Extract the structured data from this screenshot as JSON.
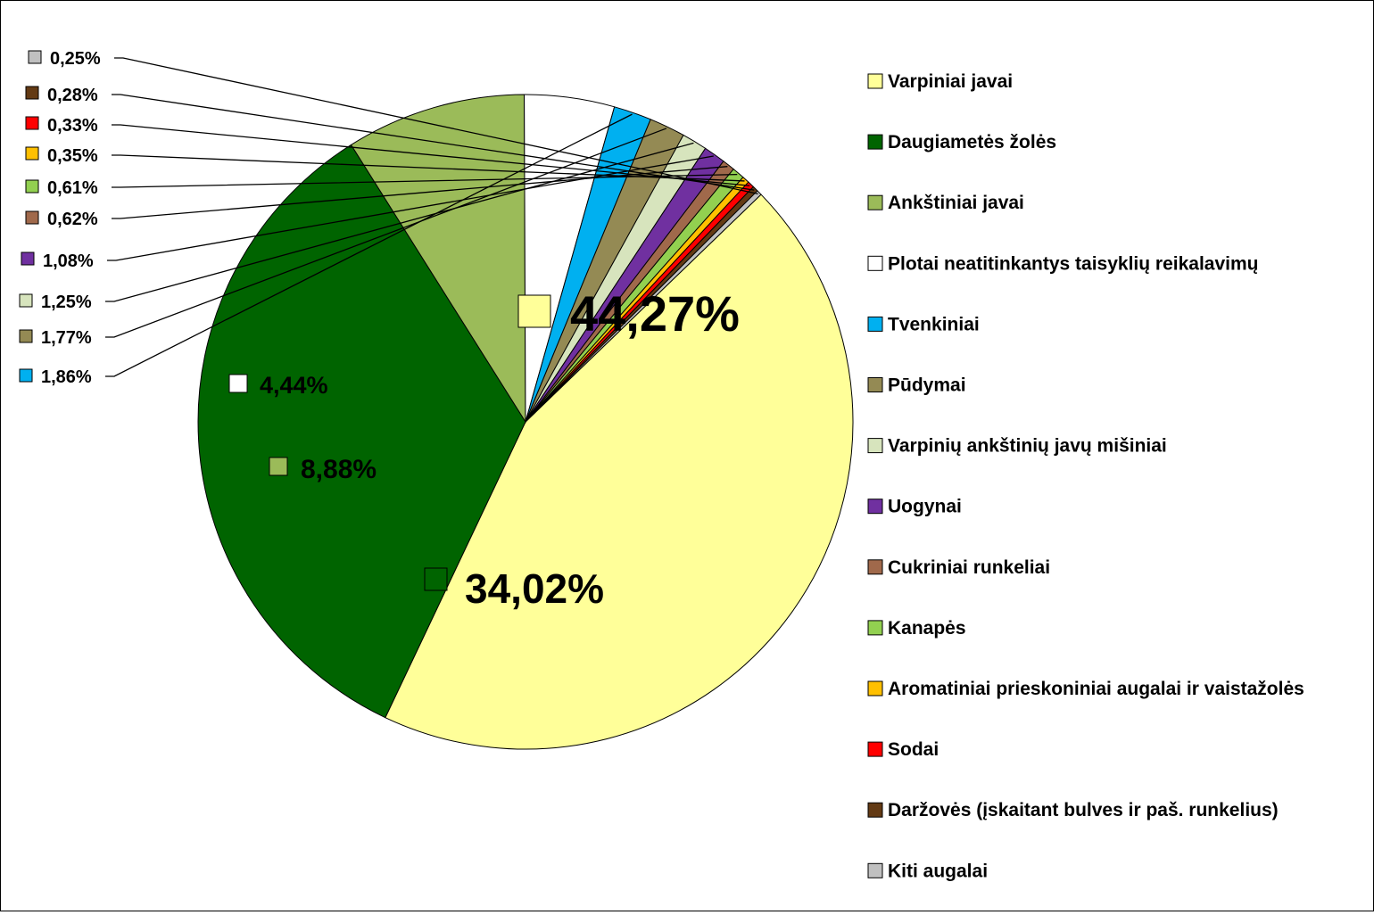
{
  "chart_data": {
    "type": "pie",
    "legend_position": "right",
    "slices": [
      {
        "label": "Varpiniai javai",
        "value": 44.27,
        "value_label": "44,27%",
        "color": "#FFFF99"
      },
      {
        "label": "Daugiametės žolės",
        "value": 34.02,
        "value_label": "34,02%",
        "color": "#006400"
      },
      {
        "label": "Ankštiniai javai",
        "value": 8.88,
        "value_label": "8,88%",
        "color": "#9BBB59"
      },
      {
        "label": "Plotai neatitinkantys taisyklių reikalavimų",
        "value": 4.44,
        "value_label": "4,44%",
        "color": "#FFFFFF"
      },
      {
        "label": "Tvenkiniai",
        "value": 1.86,
        "value_label": "1,86%",
        "color": "#00B0F0"
      },
      {
        "label": "Pūdymai",
        "value": 1.77,
        "value_label": "1,77%",
        "color": "#948A54"
      },
      {
        "label": "Varpinių ankštinių javų mišiniai",
        "value": 1.25,
        "value_label": "1,25%",
        "color": "#D7E4BD"
      },
      {
        "label": "Uogynai",
        "value": 1.08,
        "value_label": "1,08%",
        "color": "#7030A0"
      },
      {
        "label": "Cukriniai runkeliai",
        "value": 0.62,
        "value_label": "0,62%",
        "color": "#A0694B"
      },
      {
        "label": "Kanapės",
        "value": 0.61,
        "value_label": "0,61%",
        "color": "#92D050"
      },
      {
        "label": "Aromatiniai prieskoniniai augalai ir vaistažolės",
        "value": 0.35,
        "value_label": "0,35%",
        "color": "#FFC000"
      },
      {
        "label": "Sodai",
        "value": 0.33,
        "value_label": "0,33%",
        "color": "#FF0000"
      },
      {
        "label": "Daržovės (įskaitant bulves ir paš. runkelius)",
        "value": 0.28,
        "value_label": "0,28%",
        "color": "#633A14"
      },
      {
        "label": "Kiti augalai",
        "value": 0.25,
        "value_label": "0,25%",
        "color": "#C0C0C0"
      }
    ]
  }
}
